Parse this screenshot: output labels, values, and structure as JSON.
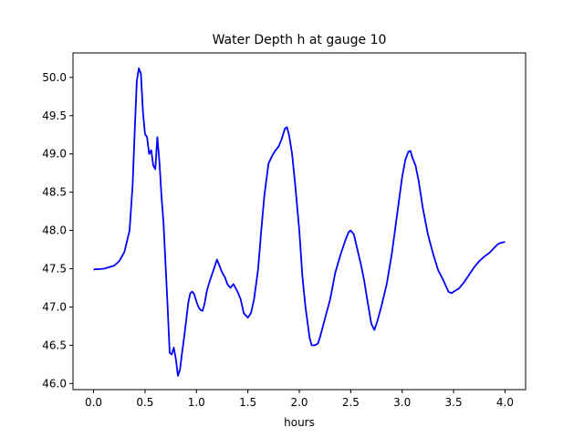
{
  "chart_data": {
    "type": "line",
    "title": "Water Depth h at gauge 10",
    "xlabel": "hours",
    "ylabel": "",
    "xlim": [
      -0.2,
      4.2
    ],
    "ylim": [
      45.92,
      50.32
    ],
    "xticks": [
      0.0,
      0.5,
      1.0,
      1.5,
      2.0,
      2.5,
      3.0,
      3.5,
      4.0
    ],
    "xtick_labels": [
      "0.0",
      "0.5",
      "1.0",
      "1.5",
      "2.0",
      "2.5",
      "3.0",
      "3.5",
      "4.0"
    ],
    "yticks": [
      46.0,
      46.5,
      47.0,
      47.5,
      48.0,
      48.5,
      49.0,
      49.5,
      50.0
    ],
    "ytick_labels": [
      "46.0",
      "46.5",
      "47.0",
      "47.5",
      "48.0",
      "48.5",
      "49.0",
      "49.5",
      "50.0"
    ],
    "grid": false,
    "legend": "none",
    "series": [
      {
        "color": "#0000ff",
        "x": [
          0.0,
          0.1,
          0.2,
          0.25,
          0.3,
          0.35,
          0.38,
          0.4,
          0.42,
          0.44,
          0.46,
          0.48,
          0.5,
          0.52,
          0.54,
          0.56,
          0.58,
          0.6,
          0.62,
          0.64,
          0.66,
          0.68,
          0.7,
          0.72,
          0.74,
          0.76,
          0.78,
          0.8,
          0.82,
          0.84,
          0.86,
          0.88,
          0.9,
          0.92,
          0.94,
          0.96,
          0.98,
          1.0,
          1.02,
          1.04,
          1.06,
          1.08,
          1.1,
          1.12,
          1.15,
          1.2,
          1.25,
          1.28,
          1.3,
          1.33,
          1.36,
          1.4,
          1.43,
          1.46,
          1.5,
          1.53,
          1.56,
          1.6,
          1.63,
          1.66,
          1.7,
          1.73,
          1.76,
          1.8,
          1.83,
          1.86,
          1.88,
          1.9,
          1.93,
          1.96,
          2.0,
          2.03,
          2.06,
          2.1,
          2.12,
          2.15,
          2.18,
          2.2,
          2.25,
          2.3,
          2.35,
          2.4,
          2.45,
          2.48,
          2.5,
          2.53,
          2.56,
          2.6,
          2.63,
          2.66,
          2.7,
          2.73,
          2.76,
          2.8,
          2.85,
          2.9,
          2.95,
          3.0,
          3.03,
          3.06,
          3.08,
          3.1,
          3.13,
          3.16,
          3.2,
          3.25,
          3.3,
          3.35,
          3.4,
          3.43,
          3.45,
          3.48,
          3.5,
          3.55,
          3.6,
          3.65,
          3.7,
          3.75,
          3.8,
          3.85,
          3.9,
          3.93,
          3.96,
          4.0
        ],
        "y": [
          47.49,
          47.5,
          47.54,
          47.6,
          47.72,
          48.0,
          48.6,
          49.3,
          49.95,
          50.12,
          50.05,
          49.55,
          49.26,
          49.22,
          49.0,
          49.05,
          48.85,
          48.8,
          49.22,
          48.9,
          48.45,
          48.1,
          47.55,
          47.0,
          46.4,
          46.38,
          46.47,
          46.32,
          46.1,
          46.18,
          46.4,
          46.6,
          46.82,
          47.05,
          47.18,
          47.2,
          47.16,
          47.07,
          47.0,
          46.96,
          46.95,
          47.05,
          47.2,
          47.3,
          47.42,
          47.62,
          47.45,
          47.38,
          47.3,
          47.25,
          47.3,
          47.2,
          47.1,
          46.92,
          46.86,
          46.92,
          47.1,
          47.5,
          48.0,
          48.45,
          48.87,
          48.96,
          49.03,
          49.1,
          49.2,
          49.33,
          49.35,
          49.25,
          49.0,
          48.6,
          48.0,
          47.4,
          47.0,
          46.6,
          46.5,
          46.5,
          46.52,
          46.6,
          46.85,
          47.1,
          47.45,
          47.68,
          47.88,
          47.98,
          48.0,
          47.95,
          47.78,
          47.55,
          47.35,
          47.1,
          46.78,
          46.7,
          46.82,
          47.02,
          47.3,
          47.7,
          48.2,
          48.7,
          48.92,
          49.03,
          49.04,
          48.95,
          48.85,
          48.65,
          48.3,
          47.95,
          47.7,
          47.48,
          47.35,
          47.26,
          47.2,
          47.18,
          47.2,
          47.24,
          47.32,
          47.42,
          47.52,
          47.6,
          47.66,
          47.71,
          47.78,
          47.82,
          47.84,
          47.85
        ]
      }
    ]
  }
}
